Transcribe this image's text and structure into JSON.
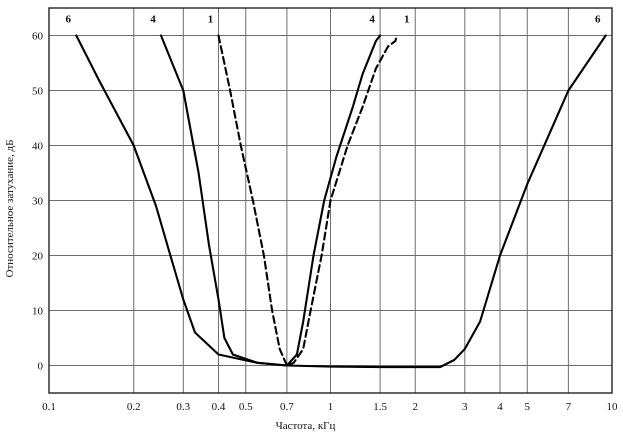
{
  "chart_data": {
    "type": "line",
    "title": "",
    "xlabel": "Частота, кГц",
    "ylabel": "Относительное затухание, дБ",
    "xscale": "log",
    "xlim": [
      0.1,
      10
    ],
    "ylim": [
      -5,
      65
    ],
    "grid": true,
    "x_ticks": [
      0.1,
      0.2,
      0.3,
      0.4,
      0.5,
      0.7,
      1,
      1.5,
      2,
      3,
      4,
      5,
      7,
      10
    ],
    "x_tick_labels": [
      "0.1",
      "0.2",
      "0.3",
      "0.4",
      "0.5",
      "0.7",
      "1",
      "1.5",
      "2",
      "3",
      "4",
      "5",
      "7",
      "10"
    ],
    "y_ticks": [
      0,
      10,
      20,
      30,
      40,
      50,
      60
    ],
    "y_tick_labels": [
      "0",
      "10",
      "20",
      "30",
      "40",
      "50",
      "60"
    ],
    "series": [
      {
        "name": "6",
        "style": "solid",
        "color": "#000000",
        "x": [
          0.125,
          0.15,
          0.2,
          0.24,
          0.27,
          0.3,
          0.33,
          0.4,
          0.55,
          0.7,
          1.0,
          1.5,
          2.0,
          2.45,
          2.75,
          3.0,
          3.4,
          4.0,
          5.0,
          7.0,
          9.5
        ],
        "y": [
          60,
          52,
          40,
          29,
          20,
          12,
          6,
          2,
          0.5,
          0,
          -0.2,
          -0.3,
          -0.3,
          -0.3,
          1,
          3,
          8,
          20,
          33,
          50,
          60
        ]
      },
      {
        "name": "4",
        "style": "solid",
        "color": "#000000",
        "x": [
          0.25,
          0.3,
          0.34,
          0.37,
          0.4,
          0.42,
          0.45,
          0.55,
          0.7,
          0.76,
          0.8,
          0.87,
          0.95,
          1.05,
          1.2,
          1.3,
          1.45,
          1.5
        ],
        "y": [
          60,
          50,
          35,
          22,
          12,
          5,
          2,
          0.5,
          0,
          2,
          8,
          20,
          30,
          38,
          47,
          53,
          59,
          60
        ]
      },
      {
        "name": "1",
        "style": "dashed",
        "color": "#000000",
        "x": [
          0.4,
          0.44,
          0.48,
          0.53,
          0.58,
          0.62,
          0.66,
          0.7,
          0.74,
          0.8,
          0.85,
          0.93,
          1.0,
          1.15,
          1.3,
          1.45,
          1.6,
          1.7,
          1.72
        ],
        "y": [
          60,
          50,
          40,
          30,
          20,
          10,
          3,
          0,
          0.5,
          3,
          10,
          20,
          30,
          40,
          47,
          54,
          58,
          59,
          60
        ]
      }
    ],
    "curve_labels": [
      {
        "text": "6",
        "x": 0.125,
        "y": 60,
        "side": "left"
      },
      {
        "text": "4",
        "x": 0.25,
        "y": 60,
        "side": "left"
      },
      {
        "text": "1",
        "x": 0.4,
        "y": 60,
        "side": "left"
      },
      {
        "text": "4",
        "x": 1.5,
        "y": 60,
        "side": "left"
      },
      {
        "text": "1",
        "x": 1.72,
        "y": 60,
        "side": "right"
      },
      {
        "text": "6",
        "x": 9.5,
        "y": 60,
        "side": "left"
      }
    ]
  }
}
